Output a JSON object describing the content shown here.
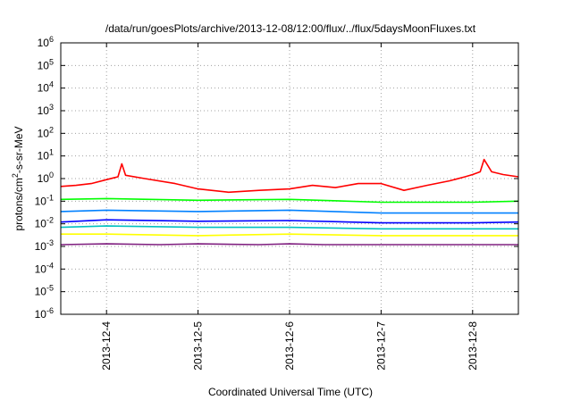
{
  "chart_data": {
    "type": "line",
    "title": "/data/run/goesPlots/archive/2013-12-08/12:00/flux/../flux/5daysMoonFluxes.txt",
    "xlabel": "Coordinated Universal Time (UTC)",
    "ylabel": {
      "base": "protons/cm",
      "exponent": "2",
      "rest": "-s-sr-MeV"
    },
    "y_scale": "log",
    "ylim": [
      1e-06,
      1000000.0
    ],
    "y_ticks": [
      {
        "value": 1e-06,
        "base": "10",
        "exponent": "-6"
      },
      {
        "value": 1e-05,
        "base": "10",
        "exponent": "-5"
      },
      {
        "value": 0.0001,
        "base": "10",
        "exponent": "-4"
      },
      {
        "value": 0.001,
        "base": "10",
        "exponent": "-3"
      },
      {
        "value": 0.01,
        "base": "10",
        "exponent": "-2"
      },
      {
        "value": 0.1,
        "base": "10",
        "exponent": "-1"
      },
      {
        "value": 1.0,
        "base": "10",
        "exponent": "0"
      },
      {
        "value": 10.0,
        "base": "10",
        "exponent": "1"
      },
      {
        "value": 100.0,
        "base": "10",
        "exponent": "2"
      },
      {
        "value": 1000.0,
        "base": "10",
        "exponent": "3"
      },
      {
        "value": 10000.0,
        "base": "10",
        "exponent": "4"
      },
      {
        "value": 100000.0,
        "base": "10",
        "exponent": "5"
      },
      {
        "value": 1000000.0,
        "base": "10",
        "exponent": "6"
      }
    ],
    "xlim": [
      "2013-12-03 12:00",
      "2013-12-08 12:00"
    ],
    "x_ticks": [
      {
        "value": "2013-12-04 00:00",
        "label": "2013-12-4"
      },
      {
        "value": "2013-12-05 00:00",
        "label": "2013-12-5"
      },
      {
        "value": "2013-12-06 00:00",
        "label": "2013-12-6"
      },
      {
        "value": "2013-12-07 00:00",
        "label": "2013-12-7"
      },
      {
        "value": "2013-12-08 00:00",
        "label": "2013-12-8"
      }
    ],
    "grid": true,
    "series": [
      {
        "color": "#ff0000",
        "x": [
          "2013-12-03 12:00",
          "2013-12-03 16:00",
          "2013-12-03 20:00",
          "2013-12-04 00:00",
          "2013-12-04 03:00",
          "2013-12-04 04:00",
          "2013-12-04 05:00",
          "2013-12-04 10:00",
          "2013-12-04 18:00",
          "2013-12-05 00:00",
          "2013-12-05 08:00",
          "2013-12-05 16:00",
          "2013-12-06 00:00",
          "2013-12-06 06:00",
          "2013-12-06 12:00",
          "2013-12-06 18:00",
          "2013-12-07 00:00",
          "2013-12-07 06:00",
          "2013-12-07 12:00",
          "2013-12-07 18:00",
          "2013-12-07 22:00",
          "2013-12-08 00:00",
          "2013-12-08 02:00",
          "2013-12-08 03:00",
          "2013-12-08 05:00",
          "2013-12-08 08:00",
          "2013-12-08 12:00"
        ],
        "values": [
          0.45,
          0.5,
          0.6,
          0.9,
          1.2,
          4.5,
          1.4,
          1.0,
          0.6,
          0.35,
          0.25,
          0.3,
          0.35,
          0.5,
          0.4,
          0.6,
          0.6,
          0.3,
          0.5,
          0.8,
          1.2,
          1.5,
          2.0,
          7.0,
          2.0,
          1.5,
          1.2
        ]
      },
      {
        "color": "#00ff00",
        "x": [
          "2013-12-03 12:00",
          "2013-12-04 00:00",
          "2013-12-05 00:00",
          "2013-12-06 00:00",
          "2013-12-07 00:00",
          "2013-12-08 00:00",
          "2013-12-08 12:00"
        ],
        "values": [
          0.12,
          0.13,
          0.11,
          0.12,
          0.09,
          0.09,
          0.1
        ]
      },
      {
        "color": "#0080ff",
        "x": [
          "2013-12-03 12:00",
          "2013-12-04 00:00",
          "2013-12-05 00:00",
          "2013-12-06 00:00",
          "2013-12-07 00:00",
          "2013-12-08 00:00",
          "2013-12-08 12:00"
        ],
        "values": [
          0.035,
          0.04,
          0.035,
          0.04,
          0.03,
          0.03,
          0.03
        ]
      },
      {
        "color": "#0000ff",
        "x": [
          "2013-12-03 12:00",
          "2013-12-04 00:00",
          "2013-12-05 00:00",
          "2013-12-06 00:00",
          "2013-12-07 00:00",
          "2013-12-08 00:00",
          "2013-12-08 12:00"
        ],
        "values": [
          0.012,
          0.015,
          0.013,
          0.014,
          0.011,
          0.011,
          0.012
        ]
      },
      {
        "color": "#00c0c0",
        "x": [
          "2013-12-03 12:00",
          "2013-12-04 00:00",
          "2013-12-05 00:00",
          "2013-12-06 00:00",
          "2013-12-07 00:00",
          "2013-12-08 00:00",
          "2013-12-08 12:00"
        ],
        "values": [
          0.007,
          0.008,
          0.007,
          0.007,
          0.006,
          0.006,
          0.006
        ]
      },
      {
        "color": "#ffff00",
        "x": [
          "2013-12-03 12:00",
          "2013-12-04 00:00",
          "2013-12-05 00:00",
          "2013-12-06 00:00",
          "2013-12-07 00:00",
          "2013-12-08 00:00",
          "2013-12-08 12:00"
        ],
        "values": [
          0.0035,
          0.0035,
          0.003,
          0.0035,
          0.003,
          0.003,
          0.003
        ]
      },
      {
        "color": "#802080",
        "x": [
          "2013-12-03 12:00",
          "2013-12-04 00:00",
          "2013-12-04 14:00",
          "2013-12-05 00:00",
          "2013-12-05 16:00",
          "2013-12-06 00:00",
          "2013-12-06 09:00",
          "2013-12-07 00:00",
          "2013-12-08 00:00",
          "2013-12-08 12:00"
        ],
        "values": [
          0.0012,
          0.0013,
          0.0012,
          0.0013,
          0.0012,
          0.0013,
          0.0012,
          0.0012,
          0.0012,
          0.0012
        ]
      }
    ]
  }
}
